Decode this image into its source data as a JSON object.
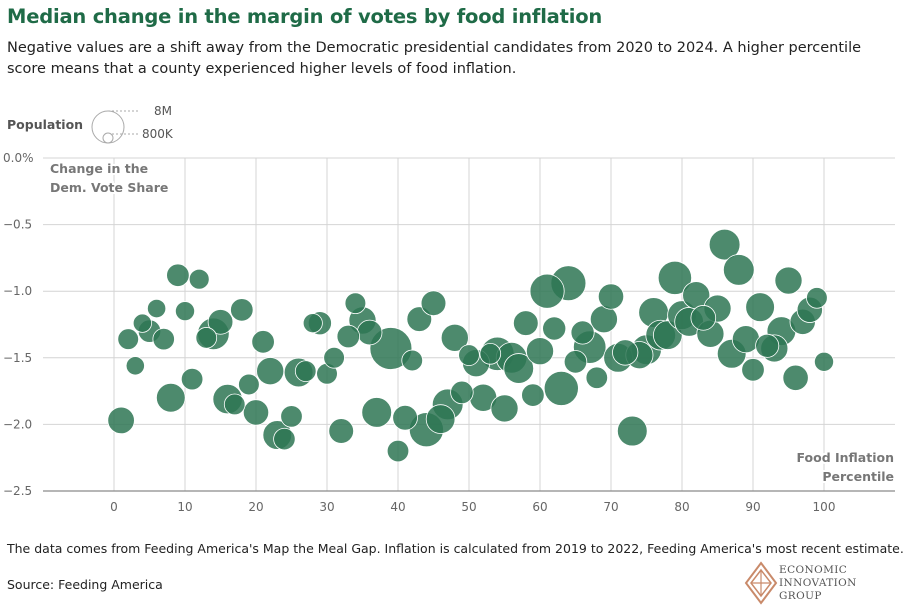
{
  "title": "Median change in the margin of votes by food inflation",
  "subtitle": "Negative values are a shift away from the Democratic presidential candidates from 2020 to 2024. A higher percentile score means that a county experienced higher levels of food inflation.",
  "legend": {
    "title": "Population",
    "large_label": "8M",
    "small_label": "800K"
  },
  "footnote": "The data comes from Feeding America's Map the Meal Gap. Inflation is calculated from 2019 to 2022, Feeding America's most recent estimate.",
  "source": "Source: Feeding America",
  "logo": {
    "line1": "ECONOMIC",
    "line2": "INNOVATION",
    "line3": "GROUP"
  },
  "colors": {
    "title": "#1f6b47",
    "bubble": "#2e7553",
    "grid": "#d4d4d4"
  },
  "chart_data": {
    "type": "scatter",
    "title": "Median change in the margin of votes by food inflation",
    "y_title_lines": [
      "Change in the",
      "Dem. Vote Share"
    ],
    "x_title_lines": [
      "Food Inflation",
      "Percentile"
    ],
    "xlim": [
      -10,
      110
    ],
    "ylim": [
      -2.5,
      0.0
    ],
    "x_ticks": [
      0,
      10,
      20,
      30,
      40,
      50,
      60,
      70,
      80,
      90,
      100
    ],
    "x_tick_labels": [
      "0",
      "10",
      "20",
      "30",
      "40",
      "50",
      "60",
      "70",
      "80",
      "90",
      "100"
    ],
    "y_ticks": [
      0.0,
      -0.5,
      -1.0,
      -1.5,
      -2.0,
      -2.5
    ],
    "y_tick_labels": [
      "0.0%",
      "−0.5",
      "−1.0",
      "−1.5",
      "−2.0",
      "−2.5"
    ],
    "size_encoding": "Population",
    "points": [
      {
        "x": 1,
        "y": -1.97,
        "pop": 0.35
      },
      {
        "x": 2,
        "y": -1.36,
        "pop": 0.15
      },
      {
        "x": 3,
        "y": -1.56,
        "pop": 0.09
      },
      {
        "x": 4,
        "y": -1.24,
        "pop": 0.09
      },
      {
        "x": 5,
        "y": -1.3,
        "pop": 0.2
      },
      {
        "x": 6,
        "y": -1.13,
        "pop": 0.09
      },
      {
        "x": 7,
        "y": -1.36,
        "pop": 0.17
      },
      {
        "x": 8,
        "y": -1.8,
        "pop": 0.45
      },
      {
        "x": 9,
        "y": -0.88,
        "pop": 0.2
      },
      {
        "x": 10,
        "y": -1.15,
        "pop": 0.11
      },
      {
        "x": 11,
        "y": -1.66,
        "pop": 0.17
      },
      {
        "x": 12,
        "y": -0.91,
        "pop": 0.13
      },
      {
        "x": 13,
        "y": -1.35,
        "pop": 0.15
      },
      {
        "x": 14,
        "y": -1.32,
        "pop": 0.6
      },
      {
        "x": 15,
        "y": -1.23,
        "pop": 0.28
      },
      {
        "x": 16,
        "y": -1.81,
        "pop": 0.48
      },
      {
        "x": 17,
        "y": -1.85,
        "pop": 0.15
      },
      {
        "x": 18,
        "y": -1.14,
        "pop": 0.2
      },
      {
        "x": 19,
        "y": -1.7,
        "pop": 0.15
      },
      {
        "x": 20,
        "y": -1.91,
        "pop": 0.3
      },
      {
        "x": 21,
        "y": -1.38,
        "pop": 0.2
      },
      {
        "x": 22,
        "y": -1.6,
        "pop": 0.38
      },
      {
        "x": 23,
        "y": -2.08,
        "pop": 0.45
      },
      {
        "x": 24,
        "y": -2.11,
        "pop": 0.17
      },
      {
        "x": 25,
        "y": -1.94,
        "pop": 0.17
      },
      {
        "x": 26,
        "y": -1.61,
        "pop": 0.45
      },
      {
        "x": 27,
        "y": -1.6,
        "pop": 0.15
      },
      {
        "x": 28,
        "y": -1.24,
        "pop": 0.11
      },
      {
        "x": 29,
        "y": -1.24,
        "pop": 0.22
      },
      {
        "x": 30,
        "y": -1.62,
        "pop": 0.15
      },
      {
        "x": 31,
        "y": -1.5,
        "pop": 0.15
      },
      {
        "x": 32,
        "y": -2.05,
        "pop": 0.28
      },
      {
        "x": 33,
        "y": -1.34,
        "pop": 0.2
      },
      {
        "x": 34,
        "y": -1.09,
        "pop": 0.15
      },
      {
        "x": 35,
        "y": -1.22,
        "pop": 0.38
      },
      {
        "x": 36,
        "y": -1.31,
        "pop": 0.28
      },
      {
        "x": 37,
        "y": -1.91,
        "pop": 0.5
      },
      {
        "x": 39,
        "y": -1.43,
        "pop": 1.3
      },
      {
        "x": 40,
        "y": -2.2,
        "pop": 0.17
      },
      {
        "x": 41,
        "y": -1.95,
        "pop": 0.28
      },
      {
        "x": 42,
        "y": -1.52,
        "pop": 0.15
      },
      {
        "x": 43,
        "y": -1.21,
        "pop": 0.28
      },
      {
        "x": 44,
        "y": -2.04,
        "pop": 0.75
      },
      {
        "x": 45,
        "y": -1.09,
        "pop": 0.28
      },
      {
        "x": 46,
        "y": -1.96,
        "pop": 0.45
      },
      {
        "x": 47,
        "y": -1.85,
        "pop": 0.55
      },
      {
        "x": 48,
        "y": -1.35,
        "pop": 0.38
      },
      {
        "x": 49,
        "y": -1.76,
        "pop": 0.2
      },
      {
        "x": 50,
        "y": -1.48,
        "pop": 0.15
      },
      {
        "x": 51,
        "y": -1.54,
        "pop": 0.38
      },
      {
        "x": 52,
        "y": -1.8,
        "pop": 0.38
      },
      {
        "x": 53,
        "y": -1.47,
        "pop": 0.15
      },
      {
        "x": 54,
        "y": -1.47,
        "pop": 0.7
      },
      {
        "x": 55,
        "y": -1.88,
        "pop": 0.38
      },
      {
        "x": 56,
        "y": -1.5,
        "pop": 0.55
      },
      {
        "x": 57,
        "y": -1.58,
        "pop": 0.5
      },
      {
        "x": 58,
        "y": -1.24,
        "pop": 0.28
      },
      {
        "x": 59,
        "y": -1.78,
        "pop": 0.2
      },
      {
        "x": 60,
        "y": -1.45,
        "pop": 0.38
      },
      {
        "x": 61,
        "y": -1.0,
        "pop": 0.75
      },
      {
        "x": 62,
        "y": -1.28,
        "pop": 0.22
      },
      {
        "x": 63,
        "y": -1.73,
        "pop": 0.75
      },
      {
        "x": 64,
        "y": -0.94,
        "pop": 0.8
      },
      {
        "x": 65,
        "y": -1.53,
        "pop": 0.2
      },
      {
        "x": 66,
        "y": -1.31,
        "pop": 0.22
      },
      {
        "x": 67,
        "y": -1.42,
        "pop": 0.65
      },
      {
        "x": 68,
        "y": -1.65,
        "pop": 0.17
      },
      {
        "x": 69,
        "y": -1.21,
        "pop": 0.38
      },
      {
        "x": 70,
        "y": -1.04,
        "pop": 0.3
      },
      {
        "x": 71,
        "y": -1.5,
        "pop": 0.45
      },
      {
        "x": 72,
        "y": -1.46,
        "pop": 0.3
      },
      {
        "x": 73,
        "y": -2.05,
        "pop": 0.5
      },
      {
        "x": 74,
        "y": -1.48,
        "pop": 0.38
      },
      {
        "x": 75,
        "y": -1.44,
        "pop": 0.5
      },
      {
        "x": 76,
        "y": -1.16,
        "pop": 0.5
      },
      {
        "x": 77,
        "y": -1.33,
        "pop": 0.5
      },
      {
        "x": 78,
        "y": -1.33,
        "pop": 0.45
      },
      {
        "x": 79,
        "y": -0.9,
        "pop": 0.7
      },
      {
        "x": 80,
        "y": -1.18,
        "pop": 0.45
      },
      {
        "x": 81,
        "y": -1.23,
        "pop": 0.45
      },
      {
        "x": 82,
        "y": -1.03,
        "pop": 0.38
      },
      {
        "x": 83,
        "y": -1.2,
        "pop": 0.28
      },
      {
        "x": 84,
        "y": -1.32,
        "pop": 0.38
      },
      {
        "x": 85,
        "y": -1.13,
        "pop": 0.38
      },
      {
        "x": 86,
        "y": -0.65,
        "pop": 0.55
      },
      {
        "x": 87,
        "y": -1.47,
        "pop": 0.45
      },
      {
        "x": 88,
        "y": -0.84,
        "pop": 0.55
      },
      {
        "x": 89,
        "y": -1.36,
        "pop": 0.38
      },
      {
        "x": 90,
        "y": -1.59,
        "pop": 0.2
      },
      {
        "x": 91,
        "y": -1.12,
        "pop": 0.45
      },
      {
        "x": 92,
        "y": -1.41,
        "pop": 0.22
      },
      {
        "x": 93,
        "y": -1.43,
        "pop": 0.38
      },
      {
        "x": 94,
        "y": -1.3,
        "pop": 0.45
      },
      {
        "x": 95,
        "y": -0.92,
        "pop": 0.38
      },
      {
        "x": 96,
        "y": -1.65,
        "pop": 0.3
      },
      {
        "x": 97,
        "y": -1.23,
        "pop": 0.3
      },
      {
        "x": 98,
        "y": -1.14,
        "pop": 0.3
      },
      {
        "x": 99,
        "y": -1.05,
        "pop": 0.15
      },
      {
        "x": 100,
        "y": -1.53,
        "pop": 0.11
      }
    ]
  }
}
